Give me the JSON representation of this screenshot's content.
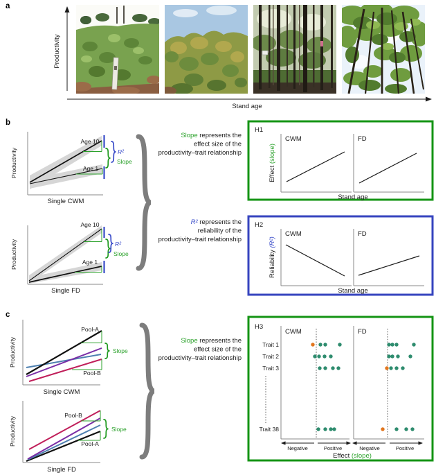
{
  "colors": {
    "green": "#2ba12b",
    "green_border": "#149414",
    "blue": "#3a4cc9",
    "blue_border": "#3644bf",
    "teal": "#2e8c6e",
    "orange": "#e2761e",
    "purple": "#7a2ea6",
    "steel_blue": "#4e80b0",
    "crimson": "#c01f5a",
    "brace_gray": "#7d7d7d"
  },
  "panel_a": {
    "label": "a",
    "y_label": "Productivity",
    "x_label": "Stand age",
    "photos": [
      "youngest stand",
      "young stand",
      "intermediate stand",
      "oldest stand"
    ]
  },
  "panel_b": {
    "label": "b",
    "cwm_plot": {
      "y_label": "Productivity",
      "x_label": "Single CWM",
      "age_top": "Age 10",
      "age_bottom": "Age 1",
      "r2": "R²",
      "slope": "Slope"
    },
    "fd_plot": {
      "y_label": "Productivity",
      "x_label": "Single FD",
      "age_top": "Age 10",
      "age_bottom": "Age 1",
      "r2": "R²",
      "slope": "Slope"
    },
    "slope_note": {
      "l1_hl": "Slope",
      "l1_rest": " represents the",
      "l2": "effect size of the",
      "l3": "productivity–trait relationship"
    },
    "r2_note": {
      "l1_hl": "R²",
      "l1_rest": " represents the",
      "l2": "reliability of the",
      "l3": "productivity–trait relationship"
    },
    "h1": {
      "label": "H1",
      "col1": "CWM",
      "col2": "FD",
      "y_label_main": "Effect ",
      "y_label_accent": "(slope)",
      "x_label": "Stand age"
    },
    "h2": {
      "label": "H2",
      "col1": "CWM",
      "col2": "FD",
      "y_label_main": "Reliability ",
      "y_label_accent": "(R²)",
      "x_label": "Stand age"
    }
  },
  "panel_c": {
    "label": "c",
    "cwm_plot": {
      "y_label": "Productivity",
      "x_label": "Single CWM",
      "pool_top": "Pool-A",
      "pool_bottom": "Pool-B",
      "slope": "Slope"
    },
    "fd_plot": {
      "y_label": "Productivity",
      "x_label": "Single FD",
      "pool_top": "Pool-B",
      "pool_bottom": "Pool-A",
      "slope": "Slope"
    },
    "slope_note": {
      "l1_hl": "Slope",
      "l1_rest": " represents the",
      "l2": "effect size of the",
      "l3": "productivity–trait relationship"
    },
    "h3": {
      "label": "H3",
      "col1": "CWM",
      "col2": "FD",
      "row_labels": [
        "Trait 1",
        "Trait 2",
        "Trait 3",
        "Trait 38"
      ],
      "negative": "Negative",
      "positive": "Positive",
      "x_label_main": "Effect ",
      "x_label_accent": "(slope)",
      "cwm_dots": [
        {
          "row": 0,
          "points": [
            {
              "x": -5,
              "c": "orange"
            },
            {
              "x": 6,
              "c": "teal"
            },
            {
              "x": 13,
              "c": "teal"
            },
            {
              "x": 34,
              "c": "teal"
            }
          ]
        },
        {
          "row": 1,
          "points": [
            {
              "x": -2,
              "c": "teal"
            },
            {
              "x": 4,
              "c": "teal"
            },
            {
              "x": 12,
              "c": "teal"
            },
            {
              "x": 21,
              "c": "teal"
            }
          ]
        },
        {
          "row": 2,
          "points": [
            {
              "x": 5,
              "c": "teal"
            },
            {
              "x": 13,
              "c": "teal"
            },
            {
              "x": 24,
              "c": "teal"
            },
            {
              "x": 32,
              "c": "teal"
            }
          ]
        },
        {
          "row": 3,
          "points": [
            {
              "x": 3,
              "c": "teal"
            },
            {
              "x": 13,
              "c": "teal"
            },
            {
              "x": 21,
              "c": "teal"
            },
            {
              "x": 26,
              "c": "teal"
            }
          ]
        }
      ],
      "fd_dots": [
        {
          "row": 0,
          "points": [
            {
              "x": 2,
              "c": "teal"
            },
            {
              "x": 7,
              "c": "teal"
            },
            {
              "x": 13,
              "c": "teal"
            },
            {
              "x": 38,
              "c": "teal"
            }
          ]
        },
        {
          "row": 1,
          "points": [
            {
              "x": 2,
              "c": "teal"
            },
            {
              "x": 7,
              "c": "teal"
            },
            {
              "x": 15,
              "c": "teal"
            },
            {
              "x": 33,
              "c": "teal"
            }
          ]
        },
        {
          "row": 2,
          "points": [
            {
              "x": -1,
              "c": "orange"
            },
            {
              "x": 5,
              "c": "teal"
            },
            {
              "x": 13,
              "c": "teal"
            },
            {
              "x": 22,
              "c": "teal"
            }
          ]
        },
        {
          "row": 3,
          "points": [
            {
              "x": -7,
              "c": "orange"
            },
            {
              "x": 13,
              "c": "teal"
            },
            {
              "x": 27,
              "c": "teal"
            },
            {
              "x": 36,
              "c": "teal"
            }
          ]
        }
      ]
    }
  }
}
